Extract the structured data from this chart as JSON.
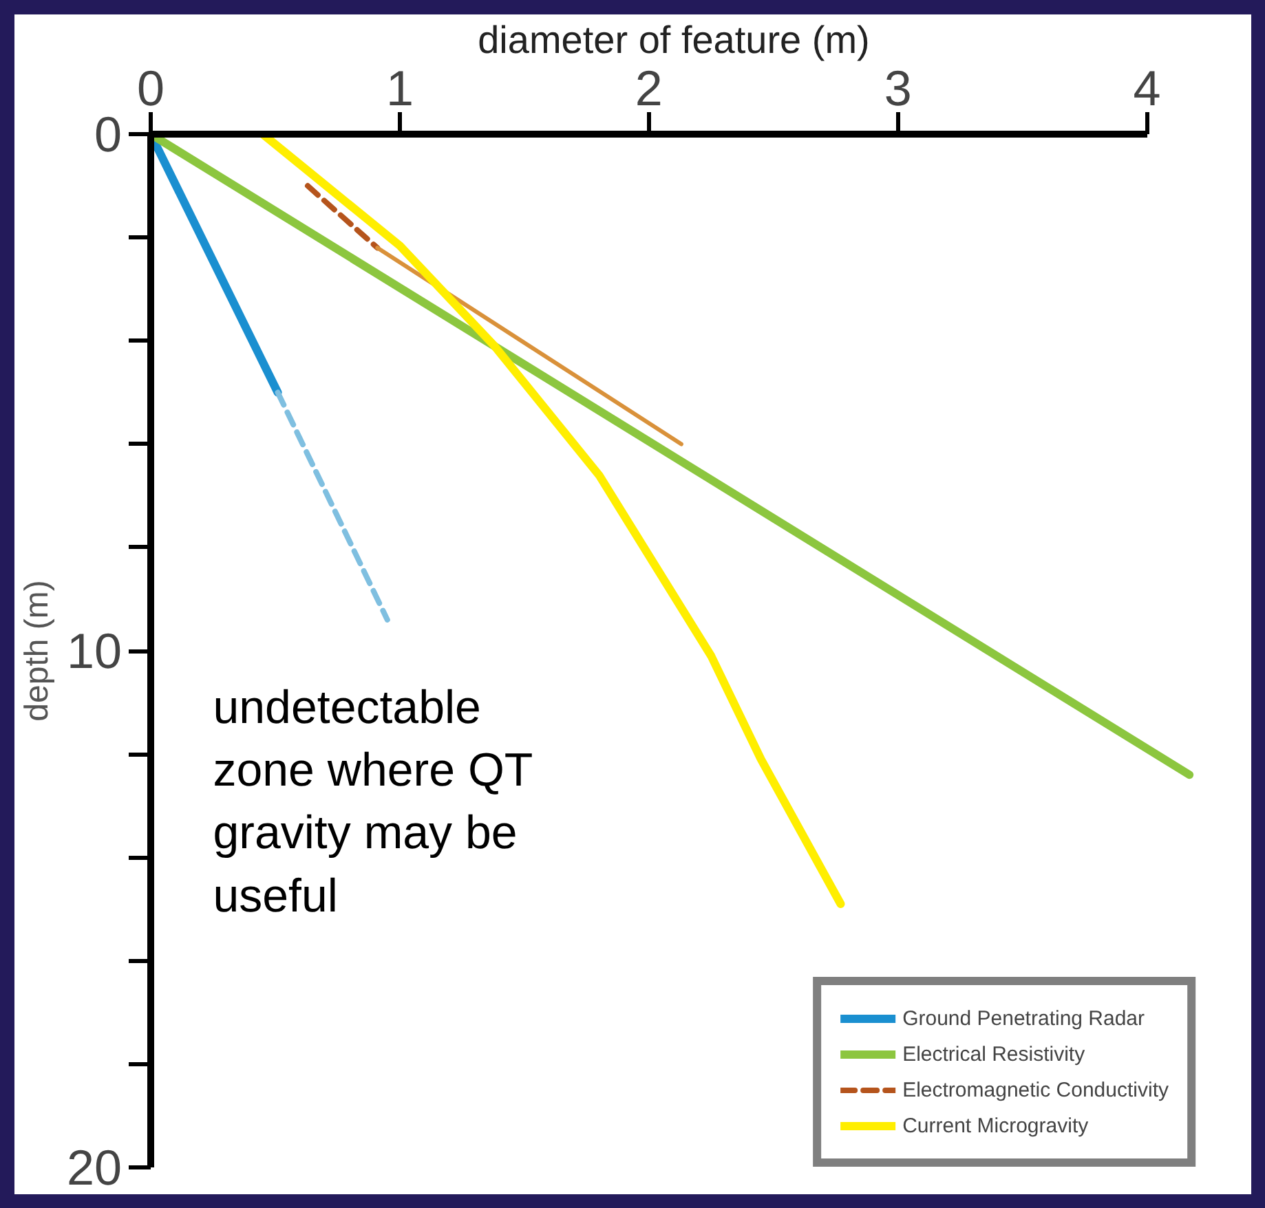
{
  "chart_data": {
    "type": "line",
    "xlabel": "diameter of feature (m)",
    "ylabel": "depth (m)",
    "xlim": [
      0,
      4.2
    ],
    "xticks": [
      0,
      1,
      2,
      3,
      4
    ],
    "ylim": [
      20,
      0
    ],
    "yticks": [
      0,
      {
        "value": 2,
        "label": null
      },
      {
        "value": 4,
        "label": null
      },
      {
        "value": 6,
        "label": null
      },
      {
        "value": 8,
        "label": null
      },
      10,
      {
        "value": 12,
        "label": null
      },
      {
        "value": 14,
        "label": null
      },
      {
        "value": 16,
        "label": null
      },
      {
        "value": 18,
        "label": null
      },
      20
    ],
    "series": [
      {
        "name": "Ground Penetrating Radar",
        "color": "#1a8fd0",
        "x": [
          0,
          0.51
        ],
        "values": [
          0,
          5.0
        ],
        "line_style": "solid"
      },
      {
        "color": "#7fbfe0",
        "x": [
          0.51,
          0.95
        ],
        "values": [
          5.0,
          9.4
        ],
        "line_style": "dashed"
      },
      {
        "name": "Electrical Resistivity",
        "color": "#8cc63f",
        "x": [
          0,
          4.17
        ],
        "values": [
          0,
          12.4
        ],
        "line_style": "solid"
      },
      {
        "name": "Electromagnetic Conductivity",
        "color": "#b5541c",
        "x": [
          0.63,
          0.91
        ],
        "values": [
          1.0,
          2.2
        ],
        "line_style": "dashed"
      },
      {
        "color": "#d9913a",
        "x": [
          0.91,
          2.13
        ],
        "values": [
          2.2,
          6.0
        ],
        "line_style": "solid"
      },
      {
        "name": "Current Microgravity",
        "color": "#ffee00",
        "x": [
          0.45,
          1.0,
          1.38,
          1.8,
          2.25,
          2.45,
          2.77
        ],
        "values": [
          0,
          2.16,
          4.1,
          6.6,
          10.1,
          12.1,
          14.9
        ],
        "line_style": "solid"
      }
    ],
    "annotations": [
      "undetectable zone where QT gravity may be useful"
    ],
    "legend": "bottom right",
    "grid": false
  }
}
